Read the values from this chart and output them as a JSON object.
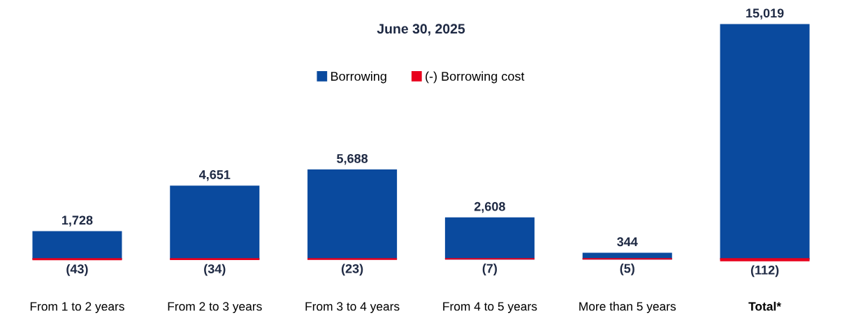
{
  "chart_data": {
    "type": "bar",
    "title": "June 30, 2025",
    "categories": [
      "From 1 to 2 years",
      "From 2 to 3 years",
      "From 3 to 4 years",
      "From 4 to 5 years",
      "More than 5 years",
      "Total*"
    ],
    "series": [
      {
        "name": "Borrowing",
        "color": "#0a4a9e",
        "values": [
          1728,
          4651,
          5688,
          2608,
          344,
          15019
        ],
        "value_labels": [
          "1,728",
          "4,651",
          "5,688",
          "2,608",
          "344",
          "15,019"
        ]
      },
      {
        "name": "(-) Borrowing cost",
        "color": "#e8001c",
        "values": [
          -43,
          -34,
          -23,
          -7,
          -5,
          -112
        ],
        "value_labels": [
          "(43)",
          "(34)",
          "(23)",
          "(7)",
          "(5)",
          "(112)"
        ]
      }
    ],
    "legend": "top",
    "tick_labels": "x",
    "grid": false
  }
}
